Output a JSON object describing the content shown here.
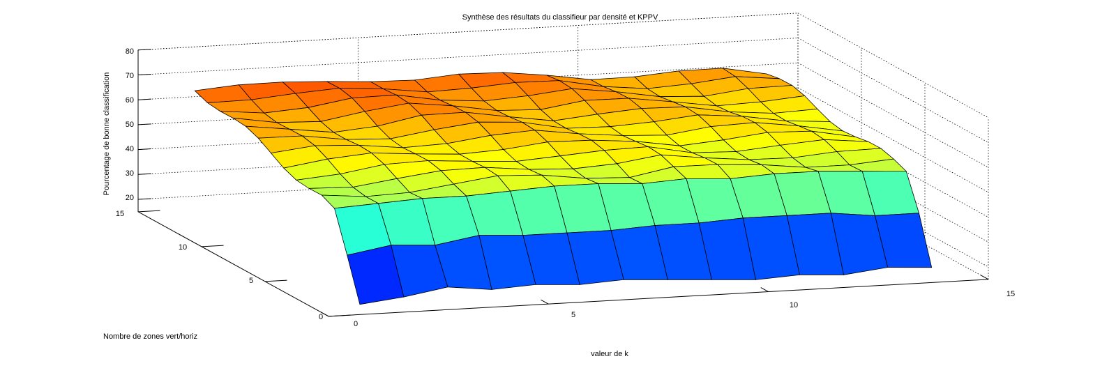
{
  "chart_data": {
    "type": "surface",
    "title": "Synthèse des résultats du classifieur par densité et KPPV",
    "xlabel": "valeur de k",
    "ylabel": "Nombre de zones vert/horiz",
    "zlabel": "Pourcentage de bonne classification",
    "xlim": [
      0,
      15
    ],
    "ylim": [
      0,
      15
    ],
    "zlim": [
      15,
      80
    ],
    "x_ticks": [
      "0",
      "5",
      "10",
      "15"
    ],
    "y_ticks": [
      "0",
      "5",
      "10",
      "15"
    ],
    "z_ticks": [
      "20",
      "30",
      "40",
      "50",
      "60",
      "70",
      "80"
    ],
    "grid": true,
    "colormap": "jet",
    "x": [
      1,
      2,
      3,
      4,
      5,
      6,
      7,
      8,
      9,
      10,
      11,
      12,
      13,
      14
    ],
    "y": [
      1,
      2,
      3,
      4,
      5,
      6,
      7,
      8,
      9,
      10,
      11,
      12,
      13,
      14
    ],
    "z_front_row_y1": [
      16,
      18,
      21,
      19,
      20,
      19,
      20,
      19,
      18,
      17,
      18,
      17,
      19,
      18
    ],
    "z_row_y2": [
      33,
      36,
      35,
      38,
      37,
      37,
      37,
      38,
      38,
      39,
      39,
      39,
      37,
      37
    ],
    "z_row_y3": [
      49,
      50,
      51,
      51,
      52,
      53,
      53,
      52,
      53,
      52,
      53,
      53,
      52,
      51
    ],
    "z_upper_rows_range": [
      52,
      65
    ],
    "z_back_row_y14": [
      67,
      66,
      65,
      66,
      67,
      66,
      65,
      64,
      64,
      63,
      62,
      61,
      61,
      60
    ]
  }
}
